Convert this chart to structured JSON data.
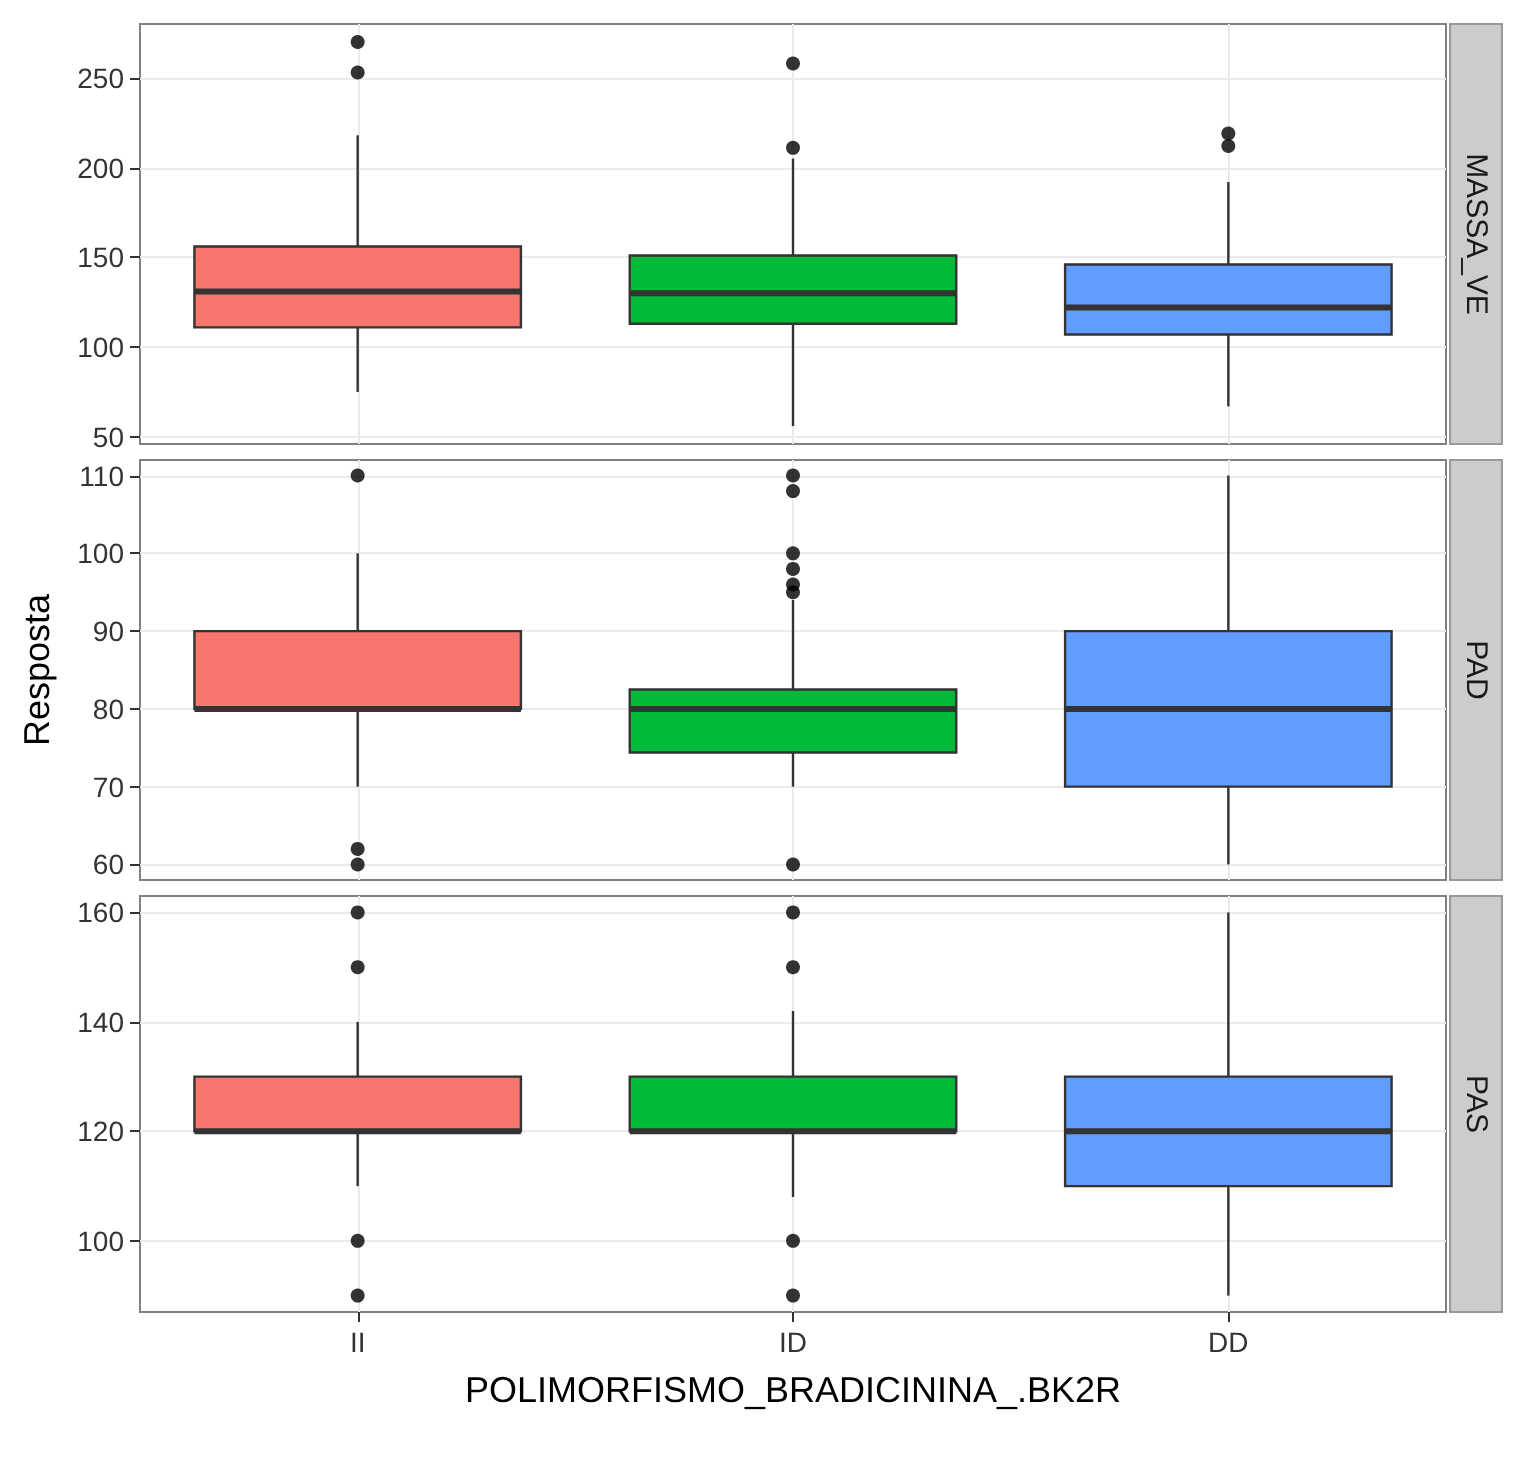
{
  "chart_data": [
    {
      "type": "box",
      "title": "MASSA_VE",
      "categories": [
        null,
        null,
        null
      ],
      "colors": [
        "#f8766d",
        "#00ba38",
        "#619cff"
      ],
      "boxes": [
        {
          "low": 75,
          "q1": 111,
          "median": 131,
          "q3": 156,
          "high": 218,
          "outliers": [
            253,
            270
          ]
        },
        {
          "low": 56,
          "q1": 113,
          "median": 130,
          "q3": 151,
          "high": 205,
          "outliers": [
            211,
            258
          ]
        },
        {
          "low": 67,
          "q1": 107,
          "median": 122,
          "q3": 146,
          "high": 192,
          "outliers": [
            212,
            219
          ]
        }
      ],
      "ylim": [
        46,
        280
      ],
      "yticks": [
        50,
        100,
        150,
        200,
        250
      ],
      "grid": true,
      "tick_labels": "y"
    },
    {
      "type": "box",
      "title": "PAD",
      "ylabel": "Resposta",
      "categories": [
        null,
        null,
        null
      ],
      "colors": [
        "#f8766d",
        "#00ba38",
        "#619cff"
      ],
      "boxes": [
        {
          "low": 70,
          "q1": 80,
          "median": 80,
          "q3": 90,
          "high": 100,
          "outliers": [
            60,
            62,
            110
          ]
        },
        {
          "low": 70,
          "q1": 74.4,
          "median": 80,
          "q3": 82.5,
          "high": 94,
          "outliers": [
            60,
            95,
            96,
            98,
            100,
            108,
            110
          ]
        },
        {
          "low": 60,
          "q1": 70,
          "median": 80,
          "q3": 90,
          "high": 110
        }
      ],
      "ylim": [
        58,
        112
      ],
      "yticks": [
        60,
        70,
        80,
        90,
        100,
        110
      ],
      "grid": true,
      "tick_labels": "y"
    },
    {
      "type": "box",
      "title": "PAS",
      "xlabel": "POLIMORFISMO_BRADICININA_.BK2R",
      "categories": [
        "II",
        "ID",
        "DD"
      ],
      "colors": [
        "#f8766d",
        "#00ba38",
        "#619cff"
      ],
      "boxes": [
        {
          "low": 110,
          "q1": 120,
          "median": 120,
          "q3": 130,
          "high": 140,
          "outliers": [
            90,
            100,
            150,
            160
          ]
        },
        {
          "low": 108,
          "q1": 120,
          "median": 120,
          "q3": 130,
          "high": 142,
          "outliers": [
            90,
            100,
            150,
            160
          ]
        },
        {
          "low": 90,
          "q1": 110,
          "median": 120,
          "q3": 130,
          "high": 160
        }
      ],
      "ylim": [
        87,
        163
      ],
      "yticks": [
        100,
        120,
        140,
        160
      ],
      "grid": true
    }
  ]
}
